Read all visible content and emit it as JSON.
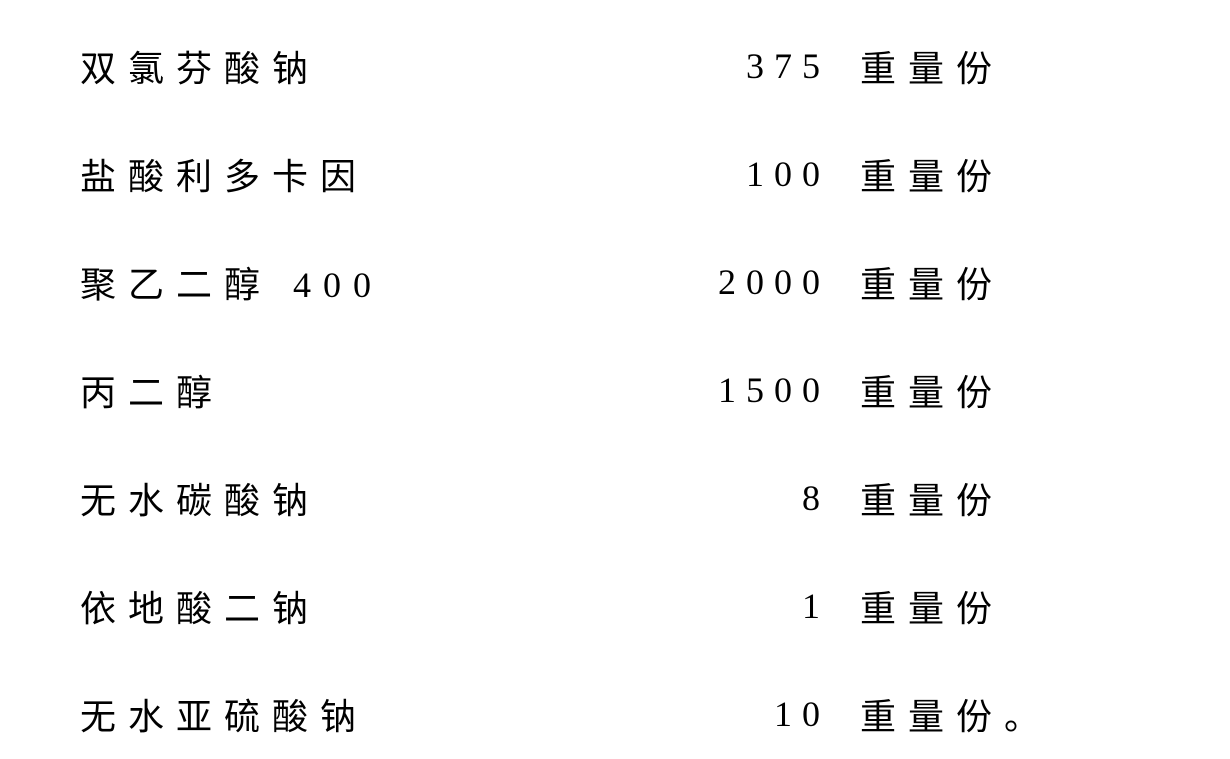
{
  "rows": [
    {
      "name": "双氯芬酸钠",
      "value": "375",
      "unit": "重量份"
    },
    {
      "name": "盐酸利多卡因",
      "value": "100",
      "unit": "重量份"
    },
    {
      "name": "聚乙二醇 400",
      "value": "2000",
      "unit": "重量份"
    },
    {
      "name": "丙二醇",
      "value": "1500",
      "unit": "重量份"
    },
    {
      "name": "无水碳酸钠",
      "value": "8",
      "unit": "重量份"
    },
    {
      "name": "依地酸二钠",
      "value": "1",
      "unit": "重量份"
    },
    {
      "name": "无水亚硫酸钠",
      "value": "10",
      "unit": "重量份。"
    }
  ],
  "styles": {
    "font_family": "SimSun",
    "font_size": 36,
    "text_color": "#000000",
    "background_color": "#ffffff",
    "letter_spacing_name": 12,
    "letter_spacing_value": 10,
    "letter_spacing_unit": 12,
    "row_spacing": 56,
    "name_column_width": 500,
    "value_column_width": 250
  }
}
